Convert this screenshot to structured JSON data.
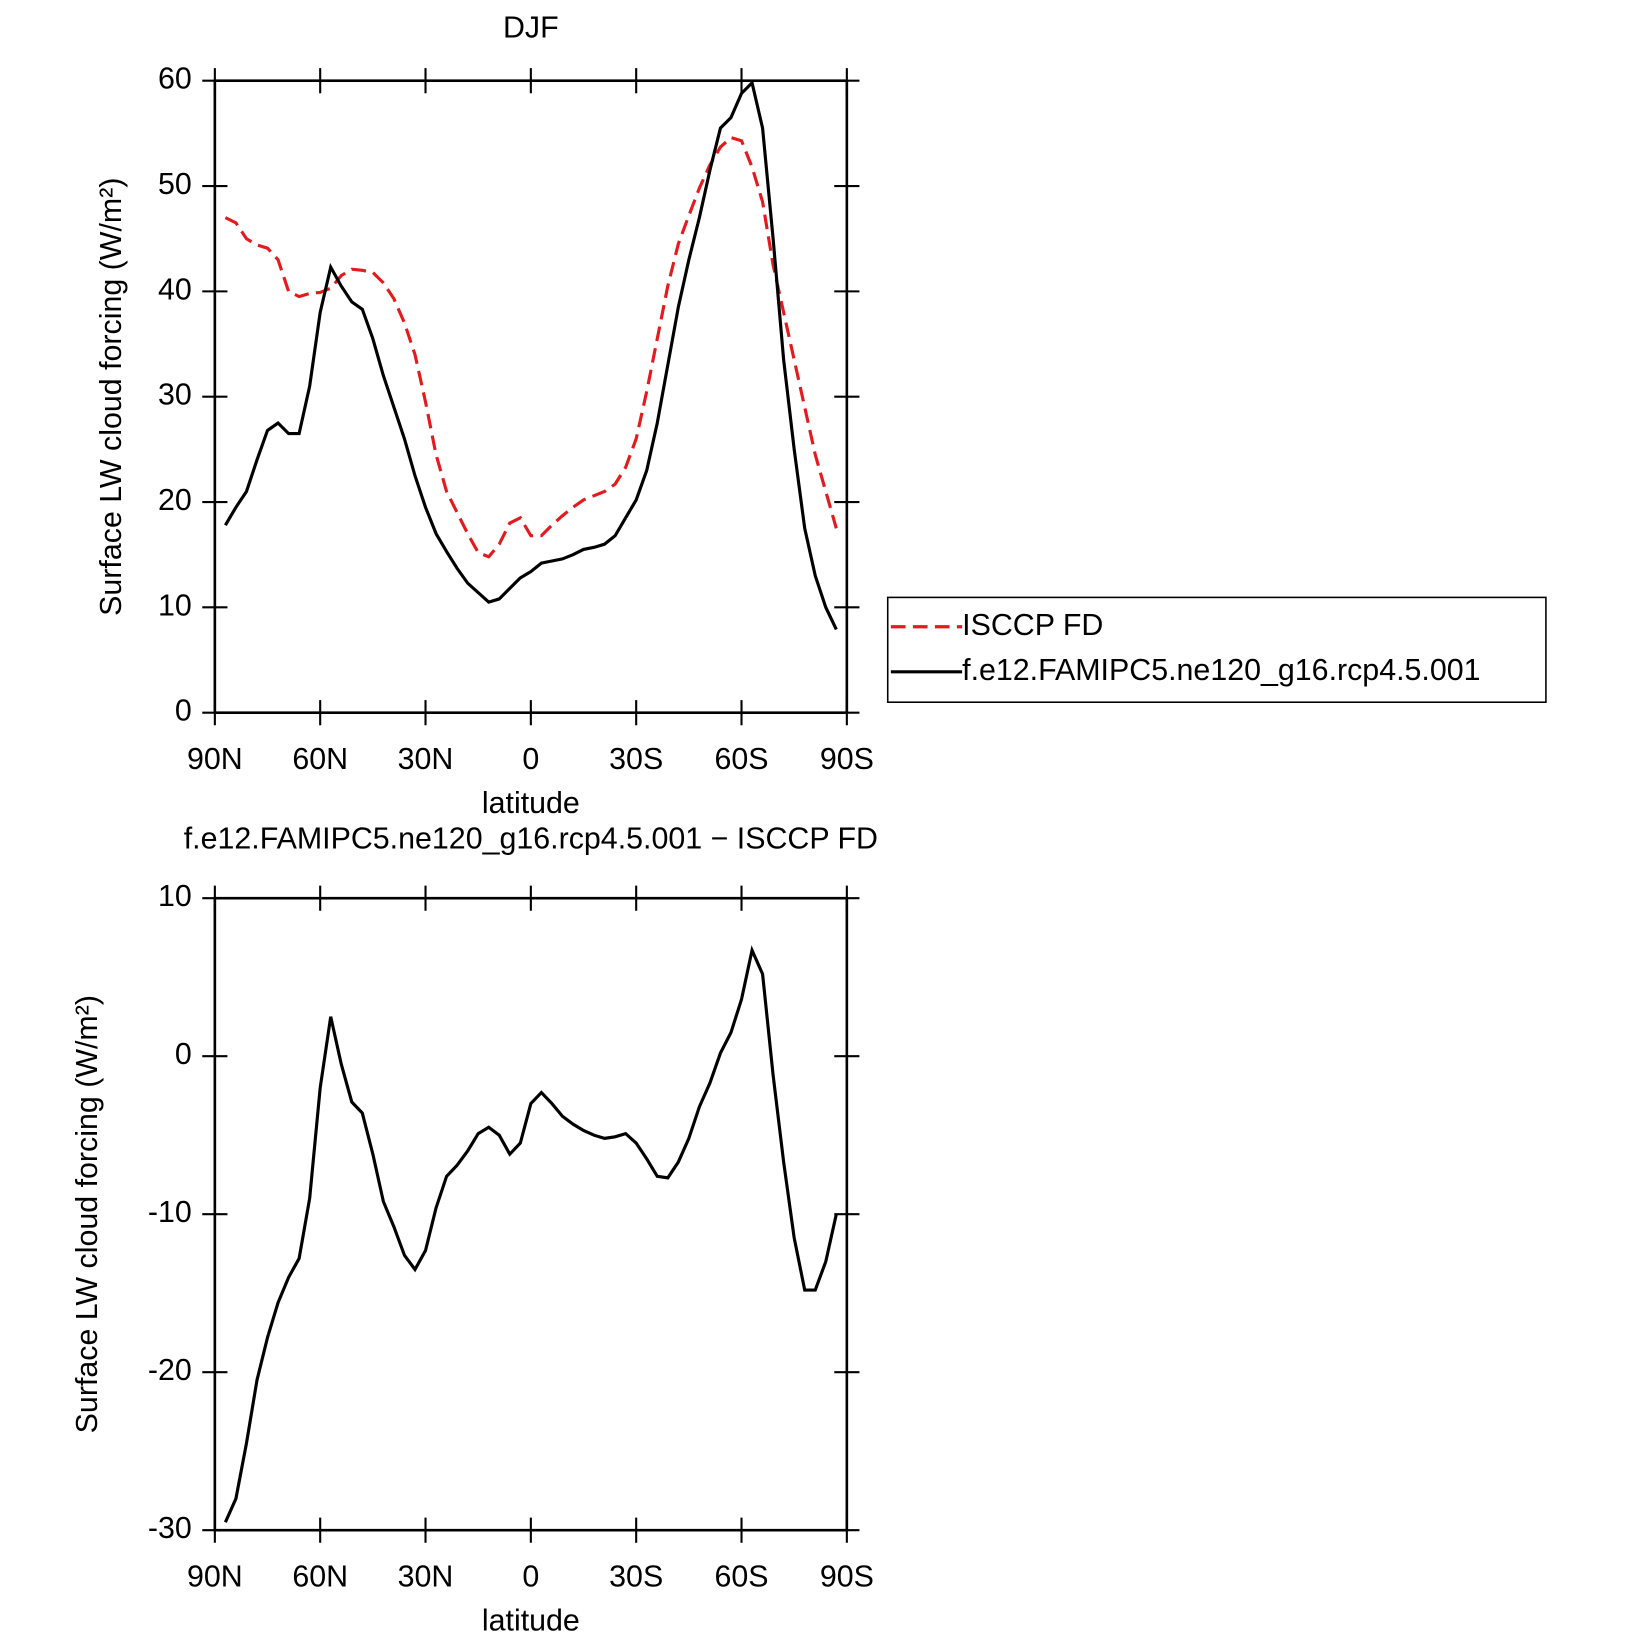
{
  "chart_data": [
    {
      "type": "line",
      "title": "DJF",
      "xlabel": "latitude",
      "ylabel": "Surface LW cloud forcing (W/m²)",
      "x": [
        87,
        84,
        81,
        78,
        75,
        72,
        69,
        66,
        63,
        60,
        57,
        54,
        51,
        48,
        45,
        42,
        39,
        36,
        33,
        30,
        27,
        24,
        21,
        18,
        15,
        12,
        9,
        6,
        3,
        0,
        -3,
        -6,
        -9,
        -12,
        -15,
        -18,
        -21,
        -24,
        -27,
        -30,
        -33,
        -36,
        -39,
        -42,
        -45,
        -48,
        -51,
        -54,
        -57,
        -60,
        -63,
        -66,
        -69,
        -72,
        -75,
        -78,
        -81,
        -84,
        -87
      ],
      "xlim": [
        90,
        -90
      ],
      "xticks": [
        {
          "value": 90,
          "label": "90N"
        },
        {
          "value": 60,
          "label": "60N"
        },
        {
          "value": 30,
          "label": "30N"
        },
        0,
        {
          "value": -30,
          "label": "30S"
        },
        {
          "value": -60,
          "label": "60S"
        },
        {
          "value": -90,
          "label": "90S"
        }
      ],
      "ylim": [
        0,
        60
      ],
      "yticks": [
        0,
        10,
        20,
        30,
        40,
        50,
        60
      ],
      "legend": "outside-right",
      "series": [
        {
          "name": "ISCCP FD",
          "color": "#e41a1c",
          "dashed": true,
          "values": [
            47,
            46.5,
            45,
            44.4,
            44.1,
            43,
            40,
            39.5,
            39.8,
            39.9,
            40.3,
            41.5,
            42.1,
            42,
            41.8,
            40.8,
            39.3,
            37,
            34,
            29.5,
            24.5,
            21,
            19,
            17,
            15.2,
            14.8,
            16,
            18,
            18.5,
            16.8,
            16.8,
            17.8,
            18.7,
            19.5,
            20.2,
            20.6,
            21,
            21.7,
            23.3,
            26,
            30.5,
            35.5,
            40.5,
            44.5,
            47.2,
            49.8,
            52,
            53.7,
            54.6,
            54.3,
            51.8,
            48.5,
            42.5,
            38,
            33.5,
            29,
            24.5,
            21,
            17.5
          ]
        },
        {
          "name": "f.e12.FAMIPC5.ne120_g16.rcp4.5.001",
          "color": "#000000",
          "dashed": false,
          "values": [
            17.8,
            19.5,
            21,
            24,
            26.8,
            27.5,
            26.5,
            26.5,
            31,
            38,
            42.3,
            40.5,
            39,
            38.3,
            35.5,
            32,
            29,
            26,
            22.5,
            19.5,
            17,
            15.3,
            13.7,
            12.3,
            11.4,
            10.5,
            10.8,
            11.8,
            12.8,
            13.4,
            14.2,
            14.4,
            14.6,
            15,
            15.5,
            15.7,
            16,
            16.8,
            18.5,
            20.2,
            23,
            27.5,
            33,
            38.5,
            43,
            47,
            51.5,
            55.5,
            56.5,
            58.8,
            59.8,
            55.5,
            45,
            33.5,
            25,
            17.5,
            13,
            10,
            7.9
          ]
        }
      ]
    },
    {
      "type": "line",
      "title": "f.e12.FAMIPC5.ne120_g16.rcp4.5.001 − ISCCP FD",
      "xlabel": "latitude",
      "ylabel": "Surface LW cloud forcing (W/m²)",
      "x": [
        87,
        84,
        81,
        78,
        75,
        72,
        69,
        66,
        63,
        60,
        57,
        54,
        51,
        48,
        45,
        42,
        39,
        36,
        33,
        30,
        27,
        24,
        21,
        18,
        15,
        12,
        9,
        6,
        3,
        0,
        -3,
        -6,
        -9,
        -12,
        -15,
        -18,
        -21,
        -24,
        -27,
        -30,
        -33,
        -36,
        -39,
        -42,
        -45,
        -48,
        -51,
        -54,
        -57,
        -60,
        -63,
        -66,
        -69,
        -72,
        -75,
        -78,
        -81,
        -84,
        -87
      ],
      "xlim": [
        90,
        -90
      ],
      "xticks": [
        {
          "value": 90,
          "label": "90N"
        },
        {
          "value": 60,
          "label": "60N"
        },
        {
          "value": 30,
          "label": "30N"
        },
        0,
        {
          "value": -30,
          "label": "30S"
        },
        {
          "value": -60,
          "label": "60S"
        },
        {
          "value": -90,
          "label": "90S"
        }
      ],
      "ylim": [
        -30,
        10
      ],
      "yticks": [
        -30,
        -20,
        -10,
        0,
        10
      ],
      "series": [
        {
          "color": "#000000",
          "dashed": false,
          "values": [
            -29.5,
            -28,
            -24.5,
            -20.5,
            -17.8,
            -15.6,
            -14,
            -12.8,
            -9,
            -2,
            2.5,
            -0.5,
            -2.9,
            -3.6,
            -6.2,
            -9.2,
            -10.8,
            -12.6,
            -13.5,
            -12.3,
            -9.6,
            -7.6,
            -6.9,
            -6,
            -4.9,
            -4.5,
            -5,
            -6.2,
            -5.5,
            -3,
            -2.3,
            -3,
            -3.8,
            -4.3,
            -4.7,
            -5,
            -5.2,
            -5.1,
            -4.9,
            -5.5,
            -6.5,
            -7.6,
            -7.7,
            -6.7,
            -5.2,
            -3.2,
            -1.7,
            0.2,
            1.5,
            3.6,
            6.7,
            5.2,
            -1.2,
            -6.7,
            -11.5,
            -14.8,
            -14.8,
            -13,
            -10
          ]
        }
      ]
    }
  ]
}
